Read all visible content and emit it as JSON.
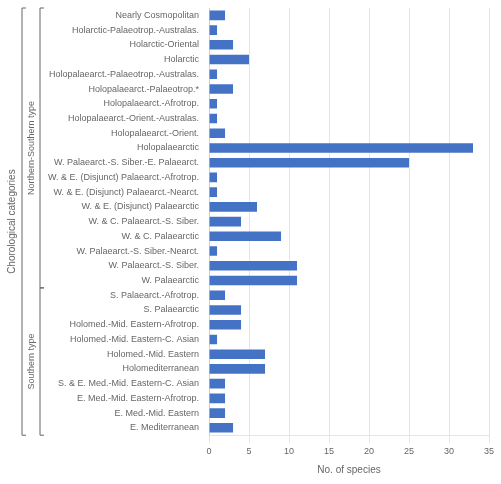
{
  "chart_data": {
    "type": "bar",
    "orientation": "horizontal",
    "categories": [
      "Nearly Cosmopolitan",
      "Holarctic-Palaeotrop.-Australas.",
      "Holarctic-Oriental",
      "Holarctic",
      "Holopalaearct.-Palaeotrop.-Australas.",
      "Holopalaearct.-Palaeotrop.*",
      "Holopalaearct.-Afrotrop.",
      "Holopalaearct.-Orient.-Australas.",
      "Holopalaearct.-Orient.",
      "Holopalaearctic",
      "W. Palaearct.-S. Siber.-E. Palaearct.",
      "W. & E. (Disjunct) Palaearct.-Afrotrop.",
      "W. & E. (Disjunct) Palaearct.-Nearct.",
      "W. & E. (Disjunct) Palaearctic",
      "W. & C. Palaearct.-S. Siber.",
      "W. & C. Palaearctic",
      "W. Palaearct.-S. Siber.-Nearct.",
      "W. Palaearct.-S. Siber.",
      "W. Palaearctic",
      "S. Palaearct.-Afrotrop.",
      "S. Palaearctic",
      "Holomed.-Mid. Eastern-Afrotrop.",
      "Holomed.-Mid. Eastern-C. Asian",
      "Holomed.-Mid. Eastern",
      "Holomediterranean",
      "S. & E. Med.-Mid. Eastern-C. Asian",
      "E. Med.-Mid. Eastern-Afrotrop.",
      "E. Med.-Mid. Eastern",
      "E. Mediterranean"
    ],
    "values": [
      2,
      1,
      3,
      5,
      1,
      3,
      1,
      1,
      2,
      33,
      25,
      1,
      1,
      6,
      4,
      9,
      1,
      11,
      11,
      2,
      4,
      4,
      1,
      7,
      7,
      2,
      2,
      2,
      3
    ],
    "color": "#4472C4",
    "xlabel": "No. of species",
    "ylabel": "Chorological categories",
    "xlim": [
      0,
      35
    ],
    "xticks": [
      0,
      5,
      10,
      15,
      20,
      25,
      30,
      35
    ],
    "grid": "x",
    "annotations": [
      {
        "text": "Northern-Southern type",
        "from": "Nearly Cosmopolitan",
        "to": "W. Palaearctic"
      },
      {
        "text": "Southern type",
        "from": "S. Palaearct.-Afrotrop.",
        "to": "E. Mediterranean"
      }
    ]
  }
}
